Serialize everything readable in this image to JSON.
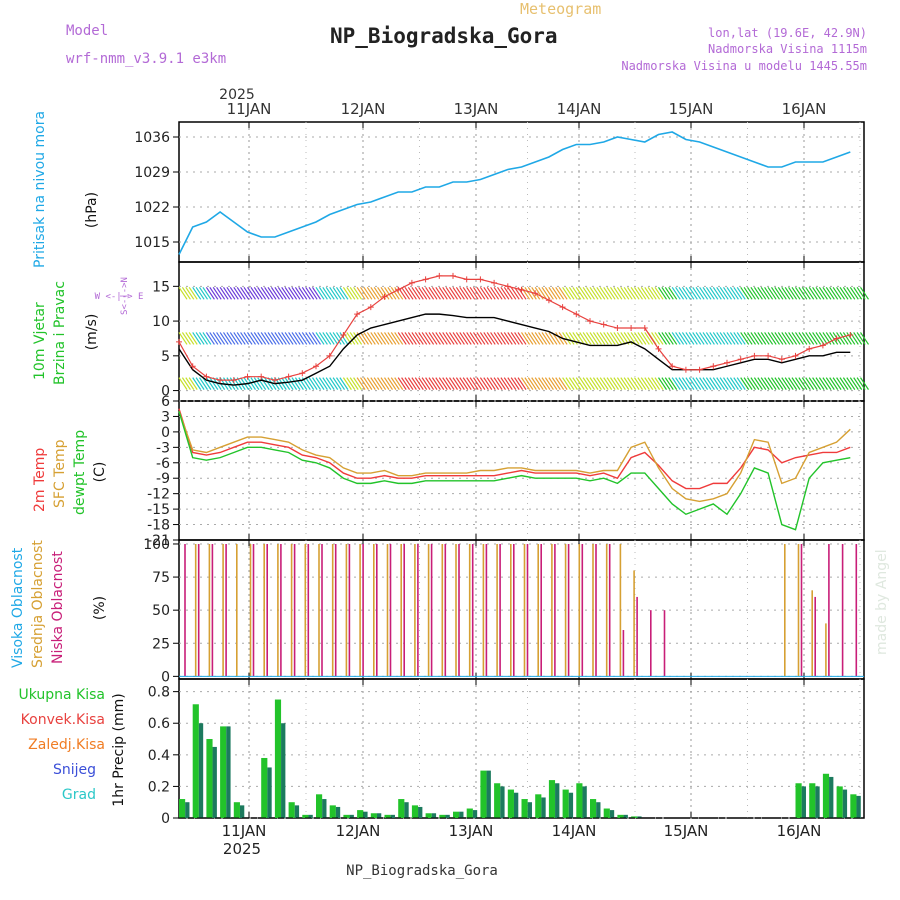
{
  "header": {
    "model_label": "Model",
    "model_name": "wrf-nmm_v3.9.1 e3km",
    "kind": "Meteogram",
    "title": "NP_Biogradska_Gora",
    "lonlat": "lon,lat (19.6E, 42.9N)",
    "elevation": "Nadmorska Visina 1115m",
    "model_elevation": "Nadmorska Visina u modelu 1445.55m",
    "footer_title": "NP_Biogradska_Gora",
    "credit": "made by Angel"
  },
  "axis": {
    "year": "2025",
    "dates": [
      "11JAN",
      "12JAN",
      "13JAN",
      "14JAN",
      "15JAN",
      "16JAN"
    ]
  },
  "panel_labels": {
    "pressure": "Pritisak na nivou mora",
    "pressure_unit": "(hPa)",
    "wind_a": "10m Vjetar",
    "wind_b": "Brzina i Pravac",
    "wind_unit": "(m/s)",
    "compass": "W <-|-> E",
    "compass_ns": "S<-|->N",
    "temp_2m": "2m Temp",
    "temp_sfc": "SFC Temp",
    "temp_dew": "dewpt Temp",
    "temp_unit": "(C)",
    "cloud_high": "Visoka Oblacnost",
    "cloud_mid": "Srednja Oblacnost",
    "cloud_low": "Niska Oblacnost",
    "cloud_unit": "(%)",
    "precip_total": "Ukupna Kisa",
    "precip_conv": "Konvek.Kisa",
    "precip_frz": "Zaledj.Kisa",
    "precip_snow": "Snijeg",
    "precip_hail": "Grad",
    "precip_unit": "1hr Precip (mm)"
  },
  "colors": {
    "pressure": "#1fa8e6",
    "wind_speed": "#000000",
    "wind_gust": "#e8423f",
    "temp_2m": "#ef3b3b",
    "temp_sfc": "#d6a033",
    "temp_dew": "#22c32a",
    "cloud_high": "#1fa8e6",
    "cloud_mid": "#d6a033",
    "cloud_low": "#c81e78",
    "precip_total": "#22c32a",
    "precip_conv": "#e8423f",
    "precip_frz": "#f07d24",
    "precip_snow": "#3b4fd8",
    "precip_hail": "#2bc8c8",
    "title_purple": "#b36ad6",
    "title_gold": "#e7c06f"
  },
  "chart_data": [
    {
      "type": "line",
      "name": "pressure",
      "title": "Pritisak na nivou mora",
      "ylabel": "(hPa)",
      "yticks": [
        1015,
        1022,
        1029,
        1036
      ],
      "ylim": [
        1011,
        1039
      ],
      "x_hours": [
        0,
        3,
        6,
        9,
        12,
        15,
        18,
        21,
        24,
        27,
        30,
        33,
        36,
        39,
        42,
        45,
        48,
        51,
        54,
        57,
        60,
        63,
        66,
        69,
        72,
        75,
        78,
        81,
        84,
        87,
        90,
        93,
        96,
        99,
        102,
        105,
        108,
        111,
        114,
        117,
        120,
        123,
        126,
        129,
        132,
        135,
        138,
        141,
        144,
        147
      ],
      "values": [
        1012.5,
        1018,
        1019,
        1021,
        1019,
        1017,
        1016,
        1016,
        1017,
        1018,
        1019,
        1020.5,
        1021.5,
        1022.5,
        1023,
        1024,
        1025,
        1025,
        1026,
        1026,
        1027,
        1027,
        1027.5,
        1028.5,
        1029.5,
        1030,
        1031,
        1032,
        1033.5,
        1034.5,
        1034.5,
        1035,
        1036,
        1035.5,
        1035,
        1036.5,
        1037,
        1035.5,
        1035,
        1034,
        1033,
        1032,
        1031,
        1030,
        1030,
        1031,
        1031,
        1031,
        1032,
        1033
      ]
    },
    {
      "type": "line",
      "name": "wind",
      "title": "10m Vjetar Brzina i Pravac",
      "ylabel": "(m/s)",
      "yticks": [
        0,
        5,
        10,
        15
      ],
      "ylim": [
        -1.5,
        18.5
      ],
      "x_hours": [
        0,
        3,
        6,
        9,
        12,
        15,
        18,
        21,
        24,
        27,
        30,
        33,
        36,
        39,
        42,
        45,
        48,
        51,
        54,
        57,
        60,
        63,
        66,
        69,
        72,
        75,
        78,
        81,
        84,
        87,
        90,
        93,
        96,
        99,
        102,
        105,
        108,
        111,
        114,
        117,
        120,
        123,
        126,
        129,
        132,
        135,
        138,
        141,
        144,
        147
      ],
      "series": [
        {
          "name": "speed",
          "values": [
            6,
            3,
            1.5,
            1,
            0.8,
            1,
            1.5,
            1,
            1.2,
            1.5,
            2.5,
            3.5,
            6,
            8,
            9,
            9.5,
            10,
            10.5,
            11,
            11,
            10.8,
            10.5,
            10.5,
            10.5,
            10,
            9.5,
            9,
            8.5,
            7.5,
            7,
            6.5,
            6.5,
            6.5,
            7,
            6,
            4.5,
            3,
            3,
            3,
            3,
            3.5,
            4,
            4.5,
            4.5,
            4,
            4.5,
            5,
            5,
            5.5,
            5.5
          ]
        },
        {
          "name": "gust",
          "values": [
            7,
            3.5,
            2,
            1.5,
            1.5,
            2,
            2,
            1.5,
            2,
            2.5,
            3.5,
            5,
            8,
            11,
            12,
            13.5,
            14.5,
            15.5,
            16,
            16.5,
            16.5,
            16,
            16,
            15.5,
            15,
            14.5,
            14,
            13,
            12,
            11,
            10,
            9.5,
            9,
            9,
            9,
            6,
            3.5,
            3,
            3,
            3.5,
            4,
            4.5,
            5,
            5,
            4.5,
            5,
            6,
            6.5,
            7.5,
            8
          ]
        }
      ]
    },
    {
      "type": "line",
      "name": "temperature",
      "title": "2m Temp / SFC Temp / dewpt Temp",
      "ylabel": "(C)",
      "yticks": [
        6,
        3,
        0,
        -3,
        -6,
        -9,
        -12,
        -15,
        -18,
        -21
      ],
      "ylim": [
        -21,
        6
      ],
      "x_hours": [
        0,
        3,
        6,
        9,
        12,
        15,
        18,
        21,
        24,
        27,
        30,
        33,
        36,
        39,
        42,
        45,
        48,
        51,
        54,
        57,
        60,
        63,
        66,
        69,
        72,
        75,
        78,
        81,
        84,
        87,
        90,
        93,
        96,
        99,
        102,
        105,
        108,
        111,
        114,
        117,
        120,
        123,
        126,
        129,
        132,
        135,
        138,
        141,
        144,
        147
      ],
      "series": [
        {
          "name": "2m Temp",
          "values": [
            4.5,
            -4,
            -4.5,
            -4,
            -3,
            -2,
            -2,
            -2.5,
            -3,
            -4.5,
            -5,
            -6,
            -8,
            -9,
            -9,
            -8.5,
            -9,
            -9,
            -8.5,
            -8.5,
            -8.5,
            -8.5,
            -8.5,
            -8.5,
            -8,
            -7.5,
            -8,
            -8,
            -8,
            -8,
            -8.5,
            -8,
            -9,
            -5,
            -4,
            -6.5,
            -9.5,
            -11,
            -11,
            -10,
            -10,
            -7,
            -3,
            -3.5,
            -6,
            -5,
            -4.5,
            -4,
            -4,
            -3
          ]
        },
        {
          "name": "SFC Temp",
          "values": [
            4,
            -3.5,
            -4,
            -3,
            -2,
            -1,
            -1,
            -1.5,
            -2,
            -3.5,
            -4.5,
            -5,
            -7,
            -8,
            -8,
            -7.5,
            -8.5,
            -8.5,
            -8,
            -8,
            -8,
            -8,
            -7.5,
            -7.5,
            -7,
            -7,
            -7.5,
            -7.5,
            -7.5,
            -7.5,
            -8,
            -7.5,
            -7.5,
            -3,
            -2,
            -7,
            -11,
            -13,
            -13.5,
            -13,
            -12,
            -8,
            -1.5,
            -2,
            -10,
            -9,
            -4,
            -3,
            -2,
            0.5
          ]
        },
        {
          "name": "dewpt Temp",
          "values": [
            4,
            -5,
            -5.5,
            -5,
            -4,
            -3,
            -3,
            -3.5,
            -4,
            -5.5,
            -6,
            -7,
            -9,
            -10,
            -10,
            -9.5,
            -10,
            -10,
            -9.5,
            -9.5,
            -9.5,
            -9.5,
            -9.5,
            -9.5,
            -9,
            -8.5,
            -9,
            -9,
            -9,
            -9,
            -9.5,
            -9,
            -10,
            -8,
            -8,
            -11,
            -14,
            -16,
            -15,
            -14,
            -16,
            -12,
            -7,
            -8,
            -18,
            -19,
            -9,
            -6,
            -5.5,
            -5
          ]
        }
      ]
    },
    {
      "type": "bar",
      "name": "clouds",
      "title": "Visoka / Srednja / Niska Oblacnost",
      "ylabel": "(%)",
      "yticks": [
        0,
        25,
        50,
        75,
        100
      ],
      "ylim": [
        -2,
        103
      ],
      "x_hours": [
        0,
        3,
        6,
        9,
        12,
        15,
        18,
        21,
        24,
        27,
        30,
        33,
        36,
        39,
        42,
        45,
        48,
        51,
        54,
        57,
        60,
        63,
        66,
        69,
        72,
        75,
        78,
        81,
        84,
        87,
        90,
        93,
        96,
        99,
        102,
        105,
        108,
        111,
        114,
        117,
        120,
        123,
        126,
        129,
        132,
        135,
        138,
        141,
        144,
        147
      ],
      "series": [
        {
          "name": "Visoka Oblacnost",
          "values": [
            0,
            0,
            0,
            0,
            0,
            0,
            0,
            0,
            0,
            0,
            0,
            0,
            0,
            0,
            0,
            0,
            0,
            0,
            0,
            0,
            0,
            0,
            0,
            0,
            0,
            0,
            0,
            0,
            0,
            0,
            0,
            0,
            0,
            0,
            0,
            0,
            0,
            0,
            0,
            0,
            0,
            0,
            0,
            0,
            0,
            0,
            0,
            0,
            0,
            0
          ]
        },
        {
          "name": "Srednja Oblacnost",
          "values": [
            0,
            100,
            100,
            100,
            100,
            100,
            100,
            100,
            100,
            100,
            100,
            100,
            100,
            100,
            100,
            100,
            100,
            100,
            100,
            100,
            100,
            100,
            100,
            100,
            100,
            100,
            100,
            100,
            100,
            100,
            100,
            100,
            100,
            80,
            0,
            0,
            0,
            0,
            0,
            0,
            0,
            0,
            0,
            0,
            100,
            100,
            65,
            40,
            0,
            0
          ]
        },
        {
          "name": "Niska Oblacnost",
          "values": [
            100,
            100,
            100,
            100,
            0,
            100,
            100,
            100,
            100,
            100,
            100,
            100,
            100,
            100,
            100,
            100,
            100,
            100,
            100,
            100,
            100,
            100,
            100,
            100,
            100,
            100,
            100,
            100,
            100,
            100,
            100,
            100,
            35,
            60,
            50,
            50,
            0,
            0,
            0,
            0,
            0,
            0,
            0,
            0,
            0,
            100,
            60,
            100,
            100,
            100
          ]
        }
      ]
    },
    {
      "type": "bar",
      "name": "precipitation",
      "title": "1hr Precip",
      "ylabel": "1hr Precip (mm)",
      "yticks": [
        0,
        0.2,
        0.4,
        0.6,
        0.8
      ],
      "ylim": [
        0,
        0.88
      ],
      "x_hours": [
        0,
        3,
        6,
        9,
        12,
        15,
        18,
        21,
        24,
        27,
        30,
        33,
        36,
        39,
        42,
        45,
        48,
        51,
        54,
        57,
        60,
        63,
        66,
        69,
        72,
        75,
        78,
        81,
        84,
        87,
        90,
        93,
        96,
        99,
        102,
        105,
        108,
        111,
        114,
        117,
        120,
        123,
        126,
        129,
        132,
        135,
        138,
        141,
        144,
        147
      ],
      "series": [
        {
          "name": "Ukupna Kisa",
          "values": [
            0.12,
            0.72,
            0.5,
            0.58,
            0.1,
            0.0,
            0.38,
            0.75,
            0.1,
            0.02,
            0.15,
            0.08,
            0.02,
            0.05,
            0.03,
            0.02,
            0.12,
            0.08,
            0.03,
            0.02,
            0.04,
            0.06,
            0.3,
            0.22,
            0.18,
            0.12,
            0.15,
            0.24,
            0.18,
            0.22,
            0.12,
            0.06,
            0.02,
            0.01,
            0.0,
            0.0,
            0.0,
            0.0,
            0.0,
            0.0,
            0.0,
            0.0,
            0.0,
            0.0,
            0.0,
            0.22,
            0.22,
            0.28,
            0.2,
            0.15
          ]
        },
        {
          "name": "Snijeg",
          "values": [
            0.1,
            0.6,
            0.45,
            0.58,
            0.08,
            0.0,
            0.32,
            0.6,
            0.08,
            0.02,
            0.12,
            0.07,
            0.02,
            0.04,
            0.03,
            0.02,
            0.1,
            0.07,
            0.03,
            0.02,
            0.04,
            0.05,
            0.3,
            0.2,
            0.16,
            0.1,
            0.13,
            0.22,
            0.16,
            0.2,
            0.1,
            0.05,
            0.02,
            0.01,
            0.0,
            0.0,
            0.0,
            0.0,
            0.0,
            0.0,
            0.0,
            0.0,
            0.0,
            0.0,
            0.0,
            0.2,
            0.2,
            0.26,
            0.18,
            0.14
          ]
        }
      ]
    }
  ]
}
